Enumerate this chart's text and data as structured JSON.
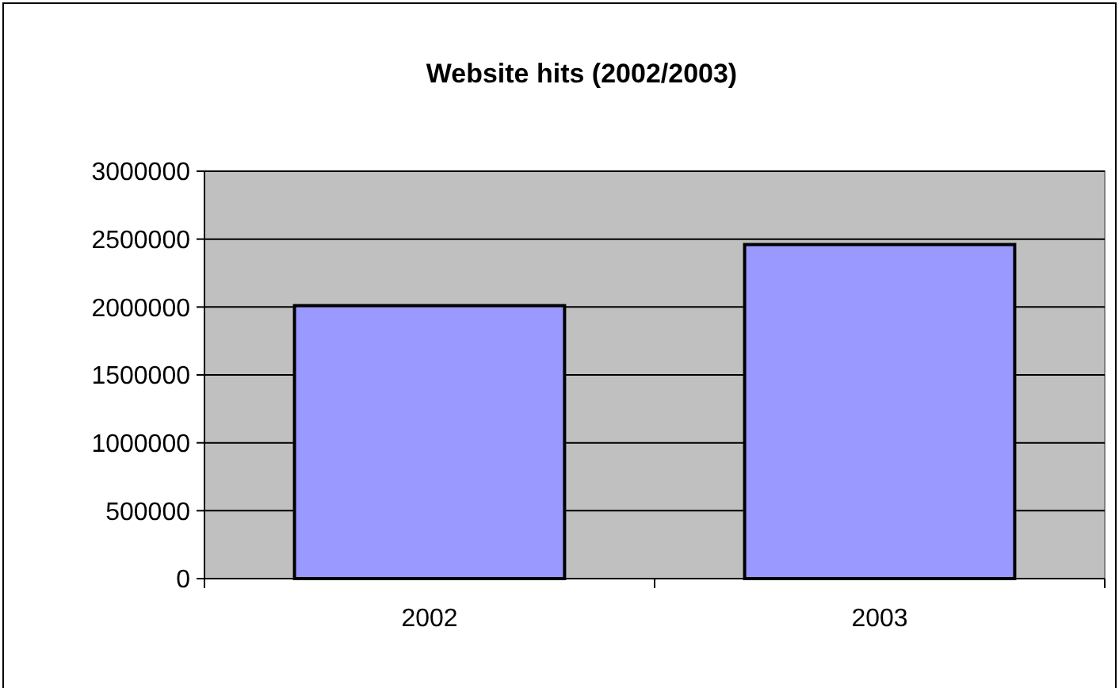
{
  "chart_data": {
    "type": "bar",
    "title": "Website hits (2002/2003)",
    "categories": [
      "2002",
      "2003"
    ],
    "values": [
      2010000,
      2460000
    ],
    "color": "#9999ff",
    "ylim": [
      0,
      3000000
    ],
    "yticks": [
      0,
      500000,
      1000000,
      1500000,
      2000000,
      2500000,
      3000000
    ],
    "grid": "y"
  }
}
